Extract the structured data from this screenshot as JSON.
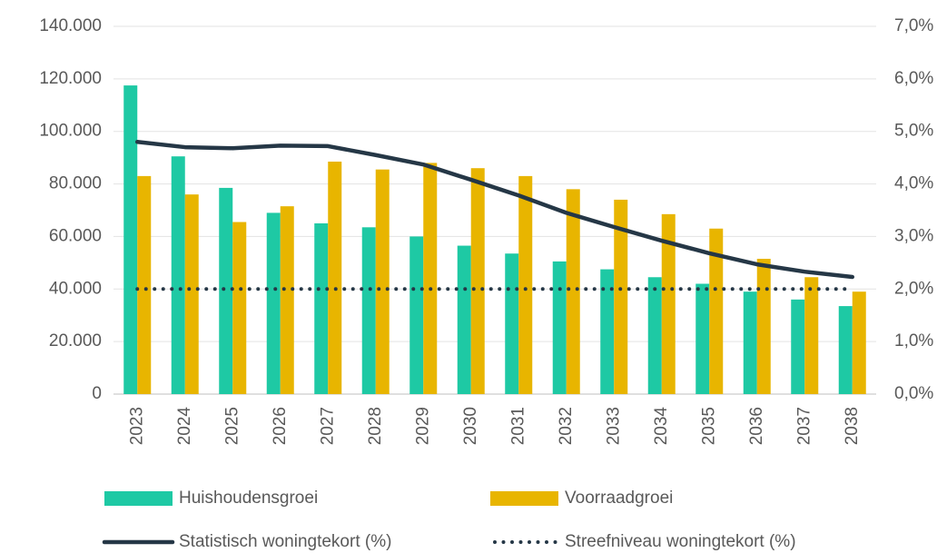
{
  "chart_data": {
    "type": "bar",
    "categories": [
      "2023",
      "2024",
      "2025",
      "2026",
      "2027",
      "2028",
      "2029",
      "2030",
      "2031",
      "2032",
      "2033",
      "2034",
      "2035",
      "2036",
      "2037",
      "2038"
    ],
    "series": [
      {
        "name": "Huishoudensgroei",
        "type": "bar",
        "color": "#1ec9a4",
        "values": [
          117500,
          90500,
          78500,
          69000,
          65000,
          63500,
          60000,
          56500,
          53500,
          50500,
          47500,
          44500,
          42000,
          39000,
          36000,
          33500
        ]
      },
      {
        "name": "Voorraadgroei",
        "type": "bar",
        "color": "#e8b500",
        "values": [
          83000,
          76000,
          65500,
          71500,
          88500,
          85500,
          88000,
          86000,
          83000,
          78000,
          74000,
          68500,
          63000,
          51500,
          44500,
          39000
        ]
      },
      {
        "name": "Statistisch woningtekort (%)",
        "type": "line",
        "axis": "y2",
        "color": "#253746",
        "style": "solid",
        "values": [
          4.8,
          4.7,
          4.68,
          4.73,
          4.72,
          4.55,
          4.37,
          4.08,
          3.78,
          3.45,
          3.18,
          2.92,
          2.68,
          2.47,
          2.33,
          2.23
        ]
      },
      {
        "name": "Streefniveau woningtekort (%)",
        "type": "line",
        "axis": "y2",
        "color": "#253746",
        "style": "dotted",
        "values": [
          2,
          2,
          2,
          2,
          2,
          2,
          2,
          2,
          2,
          2,
          2,
          2,
          2,
          2,
          2,
          2
        ]
      }
    ],
    "ylim": [
      0,
      140000
    ],
    "yticks": [
      0,
      {
        "value": 20000,
        "label": "20.000"
      },
      {
        "value": 40000,
        "label": "40.000"
      },
      {
        "value": 60000,
        "label": "60.000"
      },
      {
        "value": 80000,
        "label": "80.000"
      },
      {
        "value": 100000,
        "label": "100.000"
      },
      {
        "value": 120000,
        "label": "120.000"
      },
      {
        "value": 140000,
        "label": "140.000"
      }
    ],
    "y2lim": [
      0,
      7
    ],
    "y2ticks": [
      {
        "value": 0,
        "label": "0,0%"
      },
      {
        "value": 1,
        "label": "1,0%"
      },
      {
        "value": 2,
        "label": "2,0%"
      },
      {
        "value": 3,
        "label": "3,0%"
      },
      {
        "value": 4,
        "label": "4,0%"
      },
      {
        "value": 5,
        "label": "5,0%"
      },
      {
        "value": 6,
        "label": "6,0%"
      },
      {
        "value": 7,
        "label": "7,0%"
      }
    ],
    "grid": true
  }
}
